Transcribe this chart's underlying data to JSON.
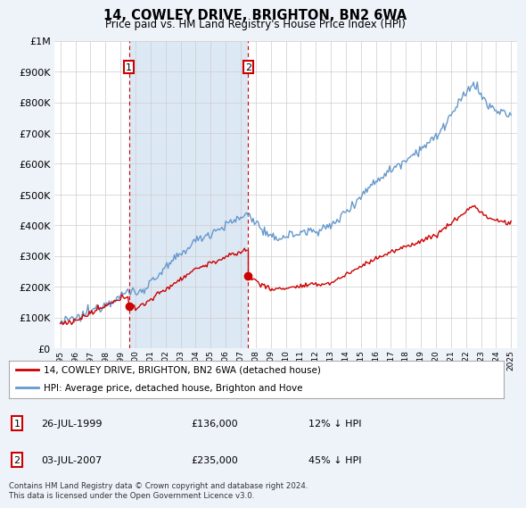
{
  "title": "14, COWLEY DRIVE, BRIGHTON, BN2 6WA",
  "subtitle": "Price paid vs. HM Land Registry's House Price Index (HPI)",
  "legend_line1": "14, COWLEY DRIVE, BRIGHTON, BN2 6WA (detached house)",
  "legend_line2": "HPI: Average price, detached house, Brighton and Hove",
  "annotation1_date": "26-JUL-1999",
  "annotation1_price": "£136,000",
  "annotation1_hpi": "12% ↓ HPI",
  "annotation2_date": "03-JUL-2007",
  "annotation2_price": "£235,000",
  "annotation2_hpi": "45% ↓ HPI",
  "footnote": "Contains HM Land Registry data © Crown copyright and database right 2024.\nThis data is licensed under the Open Government Licence v3.0.",
  "price_color": "#cc0000",
  "hpi_color": "#6699cc",
  "hpi_fill_color": "#dde8f5",
  "background_color": "#eef3fa",
  "plot_bg_color": "#ffffff",
  "ylim_min": 0,
  "ylim_max": 1000000,
  "sale1_year": 1999.57,
  "sale1_price": 136000,
  "sale2_year": 2007.5,
  "sale2_price": 235000
}
